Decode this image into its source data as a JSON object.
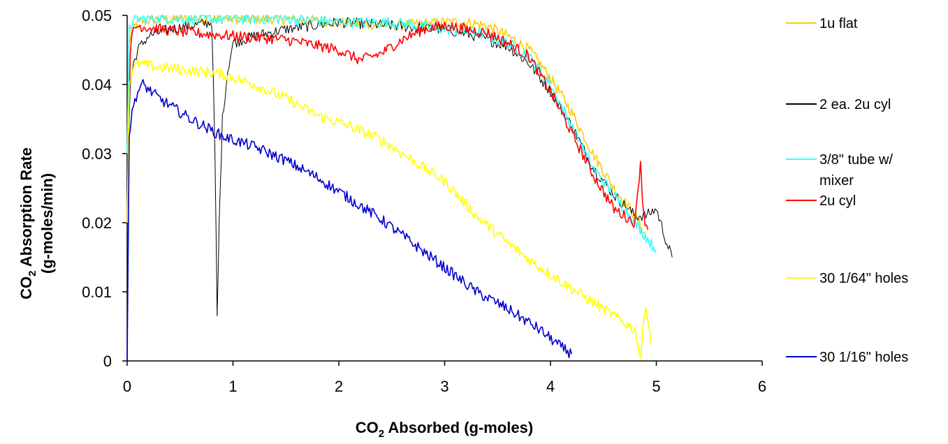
{
  "chart_data": {
    "type": "line",
    "title": "",
    "xlabel": {
      "pre": "CO",
      "sub": "2",
      "post": " Absorbed (g-moles)"
    },
    "ylabel": {
      "line1": {
        "pre": "CO",
        "sub": "2",
        "post": " Absorption Rate"
      },
      "line2": "(g-moles/min)"
    },
    "xlim": [
      0,
      6
    ],
    "ylim": [
      0,
      0.05
    ],
    "x_ticks": [
      "0",
      "1",
      "2",
      "3",
      "4",
      "5",
      "6"
    ],
    "y_ticks": [
      "0",
      "0.01",
      "0.02",
      "0.03",
      "0.04",
      "0.05"
    ],
    "grid": false,
    "legend_position": "right",
    "series": [
      {
        "name": "1u flat",
        "color": "#FFCC00",
        "x": [
          0,
          0.02,
          0.05,
          0.1,
          0.3,
          0.5,
          0.8,
          1.0,
          1.5,
          2.0,
          2.5,
          3.0,
          3.2,
          3.4,
          3.6,
          3.8,
          4.0,
          4.2,
          4.4,
          4.6,
          4.8,
          4.9
        ],
        "y": [
          0.03,
          0.046,
          0.048,
          0.049,
          0.0495,
          0.0495,
          0.0495,
          0.0495,
          0.0495,
          0.049,
          0.0485,
          0.049,
          0.049,
          0.0485,
          0.047,
          0.045,
          0.041,
          0.036,
          0.03,
          0.025,
          0.021,
          0.018
        ]
      },
      {
        "name": "2 ea. 2u cyl",
        "color": "#000000",
        "x": [
          0,
          0.03,
          0.06,
          0.1,
          0.2,
          0.4,
          0.6,
          0.8,
          0.83,
          0.85,
          0.87,
          0.9,
          0.95,
          1.0,
          1.2,
          1.5,
          2.0,
          2.5,
          3.0,
          3.3,
          3.6,
          3.8,
          4.0,
          4.2,
          4.4,
          4.6,
          4.8,
          4.9,
          5.0,
          5.1,
          5.15
        ],
        "y": [
          0.025,
          0.04,
          0.043,
          0.045,
          0.047,
          0.048,
          0.0485,
          0.049,
          0.03,
          0.006,
          0.02,
          0.035,
          0.042,
          0.046,
          0.047,
          0.048,
          0.049,
          0.0485,
          0.048,
          0.047,
          0.0455,
          0.043,
          0.039,
          0.034,
          0.028,
          0.024,
          0.021,
          0.021,
          0.022,
          0.017,
          0.015
        ]
      },
      {
        "name": "3/8\" tube w/ mixer",
        "color": "#33FFFF",
        "x": [
          0,
          0.02,
          0.05,
          0.1,
          0.5,
          1.0,
          1.5,
          2.0,
          2.5,
          3.0,
          3.3,
          3.6,
          3.8,
          4.0,
          4.2,
          4.4,
          4.6,
          4.8,
          5.0
        ],
        "y": [
          0.03,
          0.048,
          0.049,
          0.0495,
          0.0495,
          0.0495,
          0.0495,
          0.049,
          0.049,
          0.048,
          0.0475,
          0.046,
          0.044,
          0.04,
          0.034,
          0.028,
          0.024,
          0.02,
          0.016
        ]
      },
      {
        "name": "2u cyl",
        "color": "#FF0000",
        "x": [
          0,
          0.03,
          0.06,
          0.1,
          0.3,
          0.6,
          1.0,
          1.5,
          2.0,
          2.2,
          2.4,
          2.6,
          2.8,
          3.0,
          3.2,
          3.4,
          3.6,
          3.8,
          4.0,
          4.2,
          4.4,
          4.6,
          4.8,
          4.85,
          4.88,
          4.92
        ],
        "y": [
          0.02,
          0.045,
          0.048,
          0.0485,
          0.048,
          0.0475,
          0.047,
          0.0465,
          0.045,
          0.0435,
          0.0445,
          0.0465,
          0.048,
          0.0485,
          0.048,
          0.0475,
          0.046,
          0.044,
          0.039,
          0.033,
          0.027,
          0.022,
          0.02,
          0.029,
          0.021,
          0.019
        ]
      },
      {
        "name": "30 1/64\" holes",
        "color": "#FFFF00",
        "x": [
          0,
          0.02,
          0.05,
          0.1,
          0.3,
          0.6,
          0.9,
          1.2,
          1.5,
          1.8,
          2.1,
          2.4,
          2.7,
          3.0,
          3.3,
          3.6,
          3.9,
          4.2,
          4.5,
          4.8,
          4.85,
          4.9,
          4.95
        ],
        "y": [
          0.02,
          0.04,
          0.042,
          0.043,
          0.0425,
          0.042,
          0.0415,
          0.04,
          0.038,
          0.0355,
          0.034,
          0.032,
          0.029,
          0.026,
          0.021,
          0.017,
          0.0135,
          0.0105,
          0.0075,
          0.0045,
          0.0005,
          0.0085,
          0.0025
        ]
      },
      {
        "name": "30 1/16\" holes",
        "color": "#0000CC",
        "x": [
          0,
          0.02,
          0.06,
          0.1,
          0.15,
          0.3,
          0.6,
          0.9,
          1.2,
          1.5,
          1.8,
          2.1,
          2.4,
          2.7,
          3.0,
          3.3,
          3.6,
          3.9,
          4.1,
          4.2
        ],
        "y": [
          0,
          0.033,
          0.037,
          0.039,
          0.04,
          0.038,
          0.035,
          0.0325,
          0.031,
          0.029,
          0.0265,
          0.0235,
          0.0205,
          0.017,
          0.0135,
          0.01,
          0.0075,
          0.0045,
          0.002,
          0.001
        ]
      }
    ],
    "legend_entries": [
      {
        "color": "#FFCC00",
        "lines": [
          "1u flat"
        ]
      },
      {
        "color": "#000000",
        "lines": [
          "2 ea. 2u cyl"
        ]
      },
      {
        "color": "#33FFFF",
        "lines": [
          "3/8\" tube w/",
          "mixer"
        ]
      },
      {
        "color": "#FF0000",
        "lines": [
          "2u cyl"
        ]
      },
      {
        "color": "#FFFF00",
        "lines": [
          "30 1/64\" holes"
        ]
      },
      {
        "color": "#0000CC",
        "lines": [
          "30 1/16\" holes"
        ]
      }
    ]
  }
}
